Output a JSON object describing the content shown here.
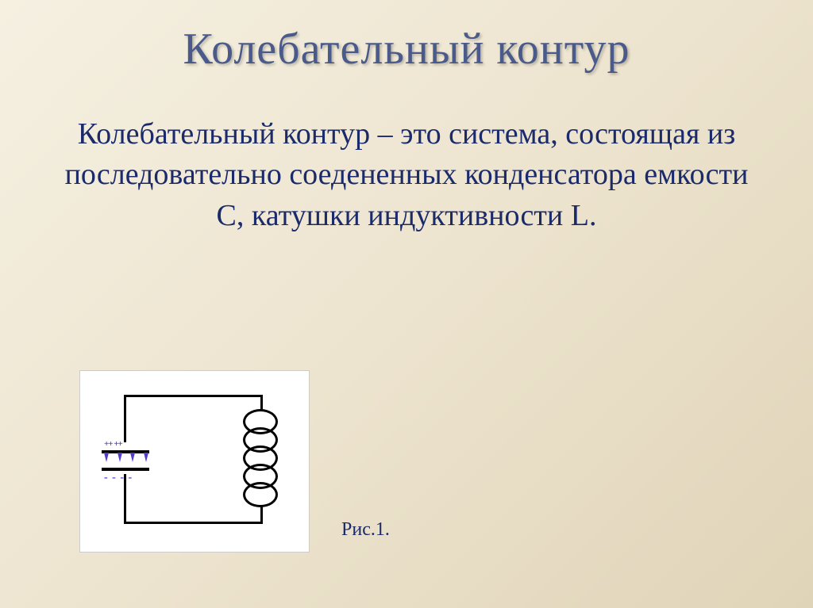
{
  "title": "Колебательный контур",
  "definition": "Колебательный контур – это система, состоящая из последовательно соедененных конденсатора емкости С, катушки индуктивности L.",
  "figure_caption": "Рис.1.",
  "capacitor": {
    "plus_marks": "++ ++",
    "minus_marks": "- - - -"
  },
  "styling": {
    "title_color": "#4a5a8a",
    "text_color": "#1a2a6a",
    "background_gradient": [
      "#f5f0e1",
      "#ede4cf",
      "#e0d4b8"
    ],
    "title_fontsize": 56,
    "body_fontsize": 38,
    "caption_fontsize": 24,
    "font_family": "Times New Roman",
    "circuit_stroke": "#000000",
    "arrow_color": "#5040c8",
    "diagram_bg": "#ffffff"
  },
  "diagram": {
    "type": "circuit",
    "components": [
      "capacitor",
      "inductor"
    ],
    "coil_loops": 5
  }
}
